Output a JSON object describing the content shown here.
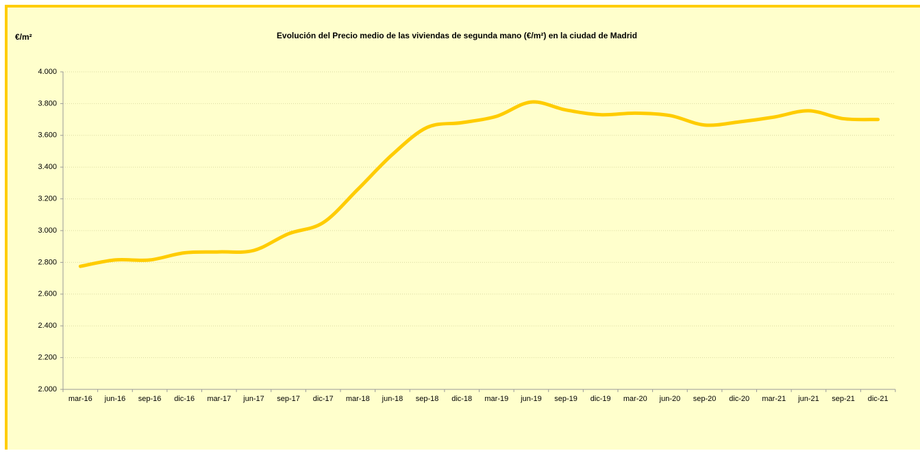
{
  "chart_data": {
    "type": "line",
    "title": "Evolución del Precio medio de las viviendas de segunda mano (€/m²) en la ciudad de Madrid",
    "y_label": "€/m²",
    "categories": [
      "mar-16",
      "jun-16",
      "sep-16",
      "dic-16",
      "mar-17",
      "jun-17",
      "sep-17",
      "dic-17",
      "mar-18",
      "jun-18",
      "sep-18",
      "dic-18",
      "mar-19",
      "jun-19",
      "sep-19",
      "dic-19",
      "mar-20",
      "jun-20",
      "sep-20",
      "dic-20",
      "mar-21",
      "jun-21",
      "sep-21",
      "dic-21"
    ],
    "series": [
      {
        "name": "Precio medio",
        "color": "#ffcc00",
        "values": [
          2775,
          2815,
          2815,
          2860,
          2866,
          2875,
          2980,
          3050,
          3260,
          3480,
          3650,
          3680,
          3720,
          3810,
          3760,
          3730,
          3740,
          3725,
          3665,
          3685,
          3715,
          3755,
          3705,
          3700
        ]
      }
    ],
    "ylim": [
      2000,
      4000
    ],
    "yticks": [
      {
        "value": 2000,
        "label": "2.000"
      },
      {
        "value": 2200,
        "label": "2.200"
      },
      {
        "value": 2400,
        "label": "2.400"
      },
      {
        "value": 2600,
        "label": "2.600"
      },
      {
        "value": 2800,
        "label": "2.800"
      },
      {
        "value": 3000,
        "label": "3.000"
      },
      {
        "value": 3200,
        "label": "3.200"
      },
      {
        "value": 3400,
        "label": "3.400"
      },
      {
        "value": 3600,
        "label": "3.600"
      },
      {
        "value": 3800,
        "label": "3.800"
      },
      {
        "value": 4000,
        "label": "4.000"
      }
    ],
    "grid": true
  }
}
